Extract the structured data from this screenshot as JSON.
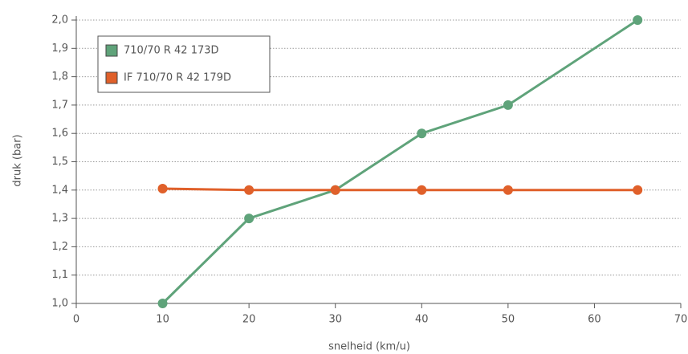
{
  "chart_data": {
    "type": "line",
    "xlabel": "snelheid (km/u)",
    "ylabel": "druk (bar)",
    "x": [
      10,
      20,
      30,
      40,
      50,
      65
    ],
    "series": [
      {
        "name": "710/70 R 42 173D",
        "color": "#5fa37a",
        "values": [
          1.0,
          1.3,
          1.4,
          1.6,
          1.7,
          2.0
        ]
      },
      {
        "name": "IF 710/70 R 42 179D",
        "color": "#e0602a",
        "values": [
          1.405,
          1.4,
          1.4,
          1.4,
          1.4,
          1.4
        ]
      }
    ],
    "xlim": [
      0,
      70
    ],
    "xticks": [
      0,
      10,
      20,
      30,
      40,
      50,
      60,
      70
    ],
    "ylim": [
      1.0,
      2.0
    ],
    "yticks": [
      {
        "value": 1.0,
        "label": "1,0"
      },
      {
        "value": 1.1,
        "label": "1,1"
      },
      {
        "value": 1.2,
        "label": "1,2"
      },
      {
        "value": 1.3,
        "label": "1,3"
      },
      {
        "value": 1.4,
        "label": "1,4"
      },
      {
        "value": 1.5,
        "label": "1,5"
      },
      {
        "value": 1.6,
        "label": "1,6"
      },
      {
        "value": 1.7,
        "label": "1,7"
      },
      {
        "value": 1.8,
        "label": "1,8"
      },
      {
        "value": 1.9,
        "label": "1,9"
      },
      {
        "value": 2.0,
        "label": "2,0"
      }
    ],
    "grid": true,
    "legend": "upper left"
  }
}
